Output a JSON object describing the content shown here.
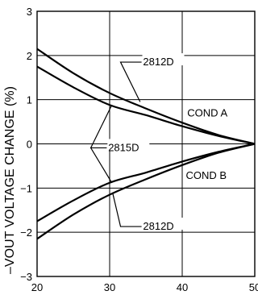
{
  "chart_data": {
    "type": "line",
    "xlabel": "",
    "ylabel": "–VOUT VOLTAGE CHANGE (%)",
    "xlim": [
      20,
      50
    ],
    "ylim": [
      -3,
      3
    ],
    "grid": true,
    "x_ticks": [
      "20",
      "30",
      "40",
      "50"
    ],
    "y_ticks": [
      "3",
      "2",
      "1",
      "0",
      "−1",
      "−2",
      "−3"
    ],
    "series": [
      {
        "name": "2812D",
        "condition": "COND A",
        "x": [
          20,
          25,
          30,
          35,
          40,
          45,
          50
        ],
        "values": [
          2.15,
          1.6,
          1.15,
          0.8,
          0.48,
          0.2,
          0.0
        ]
      },
      {
        "name": "2815D",
        "condition": "COND A",
        "x": [
          20,
          25,
          30,
          35,
          40,
          45,
          50
        ],
        "values": [
          1.75,
          1.28,
          0.88,
          0.65,
          0.4,
          0.18,
          0.0
        ]
      },
      {
        "name": "2815D",
        "condition": "COND B",
        "x": [
          20,
          25,
          30,
          35,
          40,
          45,
          50
        ],
        "values": [
          -1.75,
          -1.28,
          -0.88,
          -0.65,
          -0.4,
          -0.18,
          0.0
        ]
      },
      {
        "name": "2812D",
        "condition": "COND B",
        "x": [
          20,
          25,
          30,
          35,
          40,
          45,
          50
        ],
        "values": [
          -2.15,
          -1.6,
          -1.15,
          -0.8,
          -0.48,
          -0.2,
          0.0
        ]
      }
    ],
    "annotations": {
      "top_2812D": "2812D",
      "mid_2815D": "2815D",
      "bottom_2812D": "2812D",
      "cond_a": "COND A",
      "cond_b": "COND B"
    },
    "colors": {
      "line": "#000000",
      "grid": "#000000",
      "background": "#ffffff"
    }
  }
}
